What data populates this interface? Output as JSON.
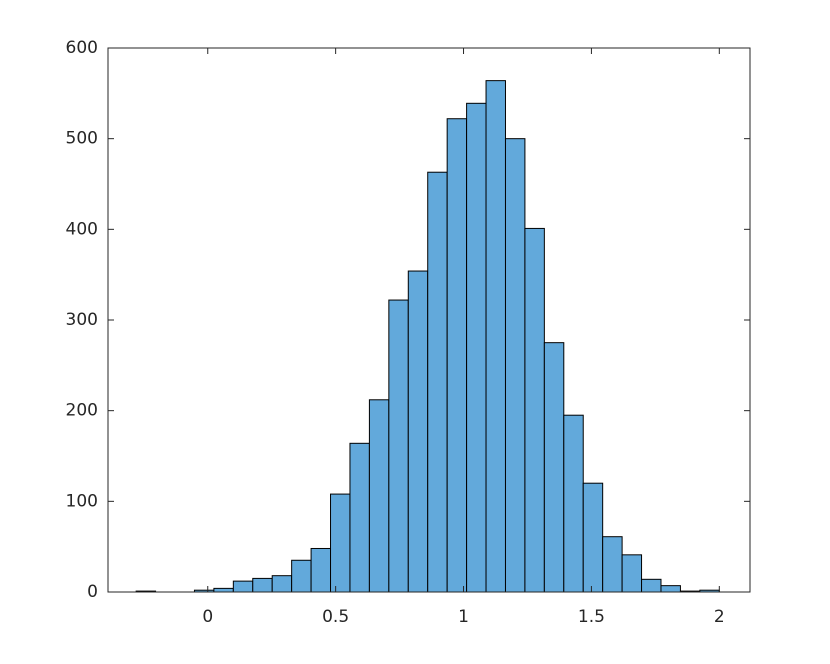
{
  "chart_data": {
    "type": "histogram",
    "bins": [
      -0.28,
      -0.204,
      -0.128,
      -0.052,
      0.024,
      0.1,
      0.176,
      0.252,
      0.328,
      0.404,
      0.48,
      0.556,
      0.632,
      0.708,
      0.784,
      0.86,
      0.936,
      1.012,
      1.088,
      1.164,
      1.24,
      1.316,
      1.392,
      1.468,
      1.544,
      1.62,
      1.696,
      1.772,
      1.848,
      1.924,
      2.0
    ],
    "values": [
      1,
      0,
      0,
      2,
      4,
      12,
      15,
      18,
      35,
      48,
      108,
      164,
      212,
      322,
      354,
      463,
      522,
      539,
      564,
      500,
      401,
      275,
      195,
      120,
      61,
      41,
      14,
      7,
      1,
      2
    ],
    "color": "#62a9db",
    "xlim": [
      -0.39,
      2.12
    ],
    "xticks": [
      0,
      0.5,
      1,
      1.5,
      2
    ],
    "ylim": [
      0,
      600
    ],
    "yticks": [
      0,
      100,
      200,
      300,
      400,
      500,
      600
    ]
  }
}
